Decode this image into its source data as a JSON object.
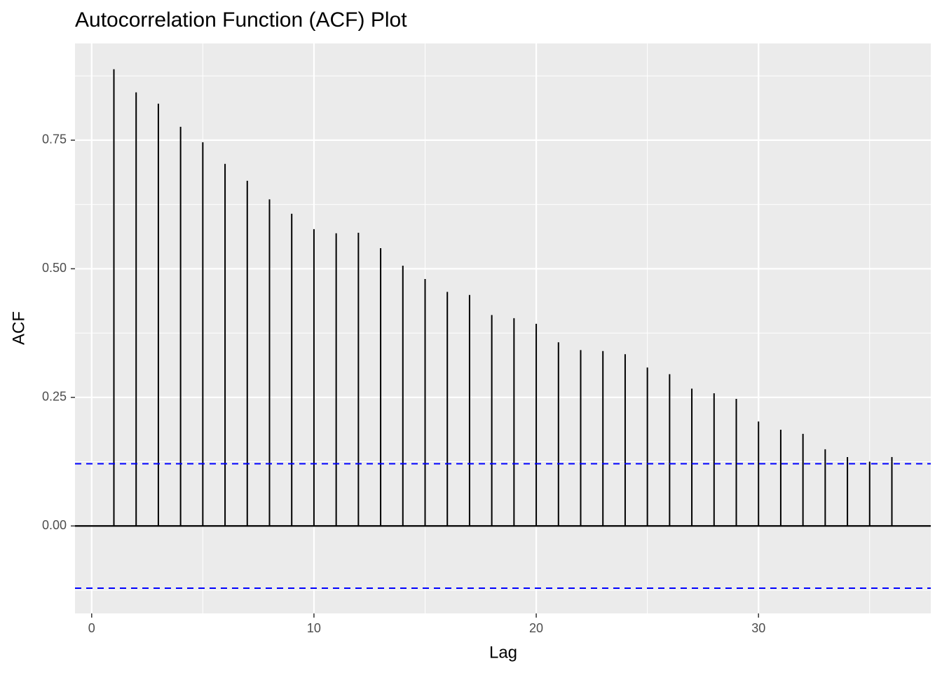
{
  "chart_data": {
    "type": "stem",
    "title": "Autocorrelation Function (ACF) Plot",
    "x_label": "Lag",
    "y_label": "ACF",
    "x": [
      1,
      2,
      3,
      4,
      5,
      6,
      7,
      8,
      9,
      10,
      11,
      12,
      13,
      14,
      15,
      16,
      17,
      18,
      19,
      20,
      21,
      22,
      23,
      24,
      25,
      26,
      27,
      28,
      29,
      30,
      31,
      32,
      33,
      34,
      35,
      36
    ],
    "values": [
      0.888,
      0.843,
      0.821,
      0.776,
      0.746,
      0.704,
      0.671,
      0.635,
      0.607,
      0.577,
      0.569,
      0.57,
      0.54,
      0.506,
      0.48,
      0.455,
      0.449,
      0.41,
      0.404,
      0.393,
      0.357,
      0.342,
      0.34,
      0.334,
      0.308,
      0.295,
      0.267,
      0.258,
      0.247,
      0.203,
      0.187,
      0.179,
      0.149,
      0.134,
      0.125,
      0.134
    ],
    "color": "#000000",
    "xlim": [
      -0.75,
      37.75
    ],
    "ylim": [
      -0.17,
      0.938
    ],
    "xticks": [
      0,
      10,
      20,
      30
    ],
    "yticks": [
      {
        "value": 0,
        "label": "0.00"
      },
      {
        "value": 0.25,
        "label": "0.25"
      },
      {
        "value": 0.5,
        "label": "0.50"
      },
      {
        "value": 0.75,
        "label": "0.75"
      }
    ],
    "x_minor_ticks": [
      5,
      15,
      25,
      35
    ],
    "y_minor_ticks": [
      -0.125,
      0.125,
      0.375,
      0.625,
      0.875
    ],
    "grid": true,
    "hlines": [
      {
        "y": 0,
        "color": "#000000",
        "dashed": false
      },
      {
        "y": 0.121,
        "color": "#0000ff",
        "dashed": true
      },
      {
        "y": -0.121,
        "color": "#0000ff",
        "dashed": true
      }
    ]
  }
}
